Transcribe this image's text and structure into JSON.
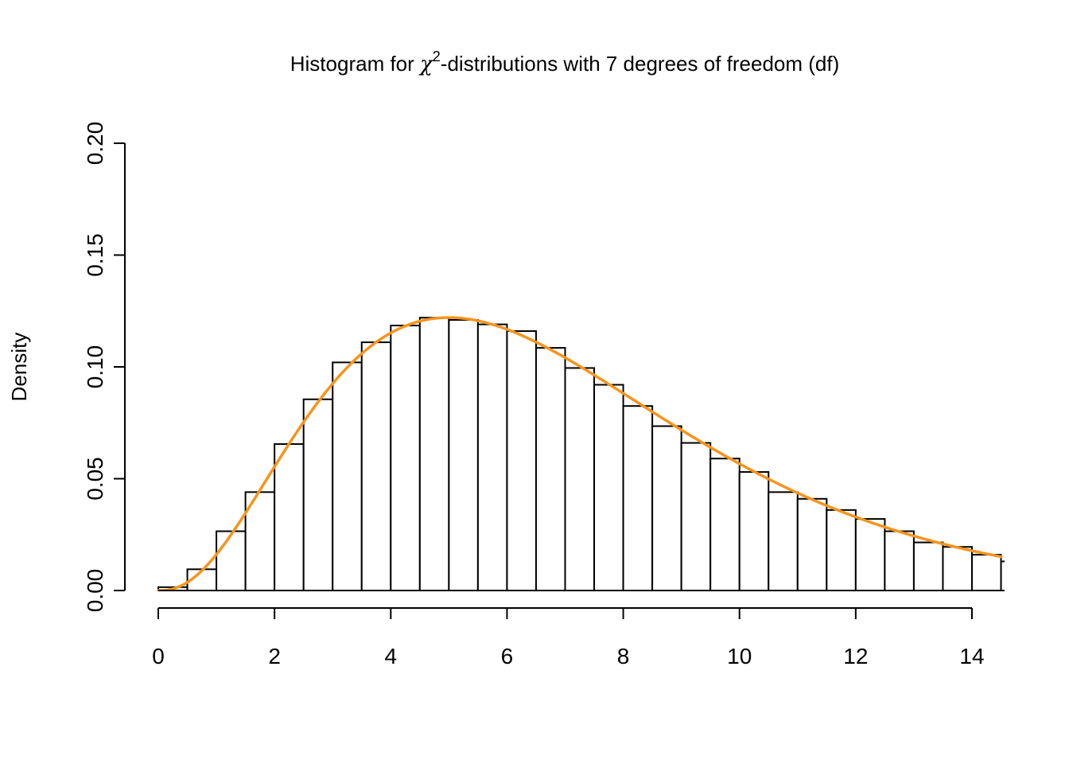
{
  "chart_data": {
    "type": "bar",
    "title": {
      "prefix": "Histogram for ",
      "symbol": "χ",
      "superscript": "2",
      "suffix": "-distributions with 7 degrees of freedom (df)"
    },
    "xlabel": "",
    "ylabel": "Density",
    "xlim": [
      0,
      14.5
    ],
    "ylim": [
      0,
      0.2
    ],
    "x_ticks": [
      0,
      2,
      4,
      6,
      8,
      10,
      12,
      14
    ],
    "x_tick_labels": [
      "0",
      "2",
      "4",
      "6",
      "8",
      "10",
      "12",
      "14"
    ],
    "y_ticks": [
      0.0,
      0.05,
      0.1,
      0.15,
      0.2
    ],
    "y_tick_labels": [
      "0.00",
      "0.05",
      "0.10",
      "0.15",
      "0.20"
    ],
    "bin_width": 0.5,
    "bins": [
      {
        "x0": 0.0,
        "x1": 0.5,
        "density": 0.0015
      },
      {
        "x0": 0.5,
        "x1": 1.0,
        "density": 0.0095
      },
      {
        "x0": 1.0,
        "x1": 1.5,
        "density": 0.0265
      },
      {
        "x0": 1.5,
        "x1": 2.0,
        "density": 0.044
      },
      {
        "x0": 2.0,
        "x1": 2.5,
        "density": 0.0655
      },
      {
        "x0": 2.5,
        "x1": 3.0,
        "density": 0.0855
      },
      {
        "x0": 3.0,
        "x1": 3.5,
        "density": 0.102
      },
      {
        "x0": 3.5,
        "x1": 4.0,
        "density": 0.111
      },
      {
        "x0": 4.0,
        "x1": 4.5,
        "density": 0.1185
      },
      {
        "x0": 4.5,
        "x1": 5.0,
        "density": 0.122
      },
      {
        "x0": 5.0,
        "x1": 5.5,
        "density": 0.121
      },
      {
        "x0": 5.5,
        "x1": 6.0,
        "density": 0.119
      },
      {
        "x0": 6.0,
        "x1": 6.5,
        "density": 0.116
      },
      {
        "x0": 6.5,
        "x1": 7.0,
        "density": 0.1085
      },
      {
        "x0": 7.0,
        "x1": 7.5,
        "density": 0.0995
      },
      {
        "x0": 7.5,
        "x1": 8.0,
        "density": 0.092
      },
      {
        "x0": 8.0,
        "x1": 8.5,
        "density": 0.0825
      },
      {
        "x0": 8.5,
        "x1": 9.0,
        "density": 0.0735
      },
      {
        "x0": 9.0,
        "x1": 9.5,
        "density": 0.066
      },
      {
        "x0": 9.5,
        "x1": 10.0,
        "density": 0.059
      },
      {
        "x0": 10.0,
        "x1": 10.5,
        "density": 0.053
      },
      {
        "x0": 10.5,
        "x1": 11.0,
        "density": 0.044
      },
      {
        "x0": 11.0,
        "x1": 11.5,
        "density": 0.041
      },
      {
        "x0": 11.5,
        "x1": 12.0,
        "density": 0.036
      },
      {
        "x0": 12.0,
        "x1": 12.5,
        "density": 0.032
      },
      {
        "x0": 12.5,
        "x1": 13.0,
        "density": 0.0265
      },
      {
        "x0": 13.0,
        "x1": 13.5,
        "density": 0.0215
      },
      {
        "x0": 13.5,
        "x1": 14.0,
        "density": 0.0195
      },
      {
        "x0": 14.0,
        "x1": 14.5,
        "density": 0.016
      },
      {
        "x0": 14.5,
        "x1": 15.0,
        "density": 0.013
      }
    ],
    "density_curve": {
      "distribution": "chi-squared",
      "df": 7,
      "color": "#F7941D"
    },
    "grid": false
  }
}
